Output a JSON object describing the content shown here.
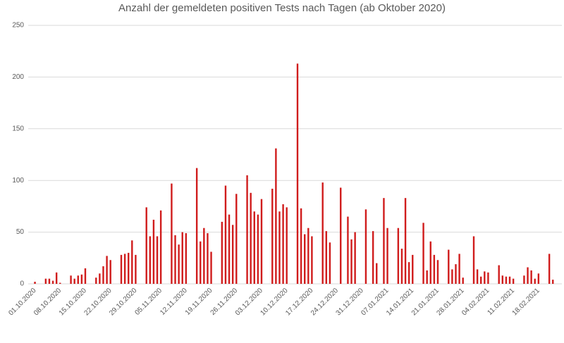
{
  "chart_data": {
    "type": "bar",
    "title": "Anzahl der gemeldeten positiven Tests nach Tagen (ab Oktober 2020)",
    "categories": [
      "01.10.2020",
      null,
      null,
      null,
      null,
      null,
      null,
      "08.10.2020",
      null,
      null,
      null,
      null,
      null,
      null,
      "15.10.2020",
      null,
      null,
      null,
      null,
      null,
      null,
      "22.10.2020",
      null,
      null,
      null,
      null,
      null,
      null,
      "29.10.2020",
      null,
      null,
      null,
      null,
      null,
      null,
      "05.11.2020",
      null,
      null,
      null,
      null,
      null,
      null,
      "12.11.2020",
      null,
      null,
      null,
      null,
      null,
      null,
      "19.11.2020",
      null,
      null,
      null,
      null,
      null,
      null,
      "26.11.2020",
      null,
      null,
      null,
      null,
      null,
      null,
      "03.12.2020",
      null,
      null,
      null,
      null,
      null,
      null,
      "10.12.2020",
      null,
      null,
      null,
      null,
      null,
      null,
      "17.12.2020",
      null,
      null,
      null,
      null,
      null,
      null,
      "24.12.2020",
      null,
      null,
      null,
      null,
      null,
      null,
      "31.12.2020",
      null,
      null,
      null,
      null,
      null,
      null,
      "07.01.2021",
      null,
      null,
      null,
      null,
      null,
      null,
      "14.01.2021",
      null,
      null,
      null,
      null,
      null,
      null,
      "21.01.2021",
      null,
      null,
      null,
      null,
      null,
      null,
      "28.01.2021",
      null,
      null,
      null,
      null,
      null,
      null,
      "04.02.2021",
      null,
      null,
      null,
      null,
      null,
      null,
      "11.02.2021",
      null,
      null,
      null,
      null,
      null,
      null,
      "18.02.2021",
      null,
      null,
      null,
      null,
      null,
      null
    ],
    "values": [
      2,
      0,
      0,
      5,
      5,
      3,
      11,
      1,
      0,
      0,
      8,
      5,
      8,
      9,
      15,
      0,
      0,
      6,
      10,
      17,
      27,
      23,
      0,
      0,
      28,
      29,
      30,
      42,
      28,
      0,
      0,
      74,
      46,
      62,
      46,
      71,
      0,
      0,
      97,
      47,
      38,
      50,
      49,
      0,
      0,
      112,
      41,
      54,
      49,
      31,
      0,
      0,
      60,
      95,
      67,
      57,
      87,
      0,
      0,
      105,
      88,
      70,
      67,
      82,
      0,
      0,
      92,
      131,
      70,
      77,
      74,
      0,
      0,
      213,
      73,
      48,
      54,
      46,
      0,
      0,
      98,
      51,
      40,
      0,
      0,
      93,
      0,
      65,
      43,
      50,
      0,
      0,
      72,
      0,
      51,
      20,
      0,
      83,
      54,
      0,
      0,
      54,
      34,
      83,
      21,
      28,
      0,
      0,
      59,
      13,
      41,
      28,
      23,
      0,
      0,
      33,
      14,
      19,
      29,
      6,
      0,
      0,
      46,
      14,
      7,
      12,
      11,
      0,
      0,
      18,
      8,
      7,
      7,
      5,
      0,
      0,
      8,
      16,
      13,
      5,
      10,
      0,
      0,
      29,
      4,
      0,
      0
    ],
    "color": "#d01c1c",
    "ylim": [
      0,
      250
    ],
    "yticks": [
      0,
      50,
      100,
      150,
      200,
      250
    ],
    "grid": true
  }
}
